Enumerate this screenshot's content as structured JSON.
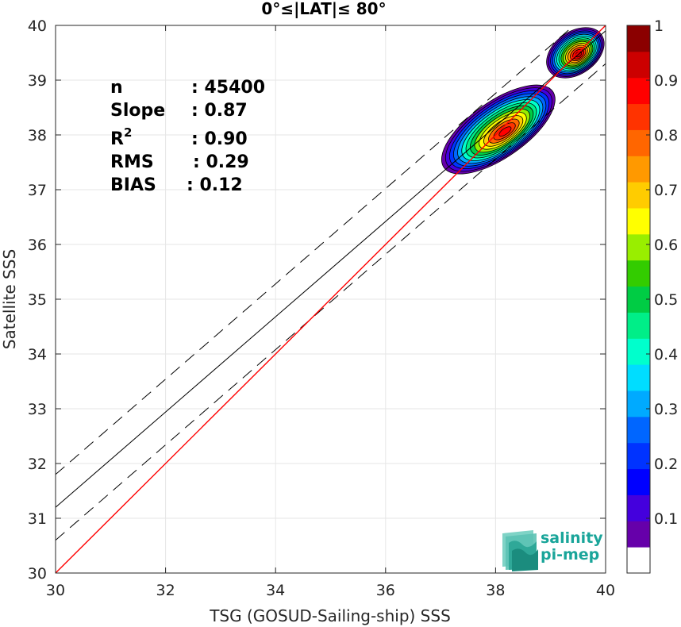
{
  "chart_data": {
    "type": "heatmap",
    "title": "0°≤|LAT|≤ 80°",
    "xlabel": "TSG (GOSUD-Sailing-ship) SSS",
    "ylabel": "Satellite SSS",
    "xlim": [
      30,
      40
    ],
    "ylim": [
      30,
      40
    ],
    "x_ticks": [
      "30",
      "32",
      "34",
      "36",
      "38",
      "40"
    ],
    "y_ticks": [
      "30",
      "31",
      "32",
      "33",
      "34",
      "35",
      "36",
      "37",
      "38",
      "39",
      "40"
    ],
    "grid": true,
    "stats": [
      {
        "label": "n",
        "value": ": 45400"
      },
      {
        "label": "Slope",
        "value": ": 0.87"
      },
      {
        "label": "R",
        "sup": "2",
        "value": ": 0.90"
      },
      {
        "label": "RMS",
        "value": ": 0.29"
      },
      {
        "label": "BIAS",
        "value": ": 0.12"
      }
    ],
    "one_to_one_line": {
      "color": "#ff0000",
      "points": [
        [
          30,
          30
        ],
        [
          40,
          40
        ]
      ]
    },
    "regression_line": {
      "color": "#000000",
      "points": [
        [
          30,
          31.2
        ],
        [
          40,
          39.9
        ]
      ]
    },
    "rms_bounds_lines": [
      {
        "style": "dashed",
        "points": [
          [
            30,
            31.8
          ],
          [
            40,
            40.5
          ]
        ]
      },
      {
        "style": "dashed",
        "points": [
          [
            30,
            30.6
          ],
          [
            40,
            39.3
          ]
        ]
      }
    ],
    "density_clusters": [
      {
        "center": [
          38.05,
          38.1
        ],
        "extent": [
          [
            36.7,
            39.0
          ],
          [
            37.15,
            38.8
          ]
        ],
        "peak": 0.9
      },
      {
        "center": [
          39.45,
          39.5
        ],
        "extent": [
          [
            38.85,
            39.95
          ],
          [
            38.7,
            39.95
          ]
        ],
        "peak": 0.95
      }
    ],
    "colorbar": {
      "ticks": [
        "0.1",
        "0.2",
        "0.3",
        "0.4",
        "0.5",
        "0.6",
        "0.7",
        "0.8",
        "0.9",
        "1"
      ],
      "range": [
        0,
        1
      ],
      "levels": 14,
      "colors": [
        "#ffffff",
        "#6600aa",
        "#4400dd",
        "#0000ff",
        "#0033ff",
        "#0066ff",
        "#00aaff",
        "#00ddff",
        "#00ffcc",
        "#00ee88",
        "#00cc44",
        "#33cc00",
        "#99ee00",
        "#ffff00",
        "#ffcc00",
        "#ff9900",
        "#ff6600",
        "#ff3300",
        "#ff0000",
        "#cc0000",
        "#8b0000"
      ]
    }
  },
  "logo": {
    "line1": "salinity",
    "line2": "pi-mep",
    "color": "#1aa59a"
  }
}
